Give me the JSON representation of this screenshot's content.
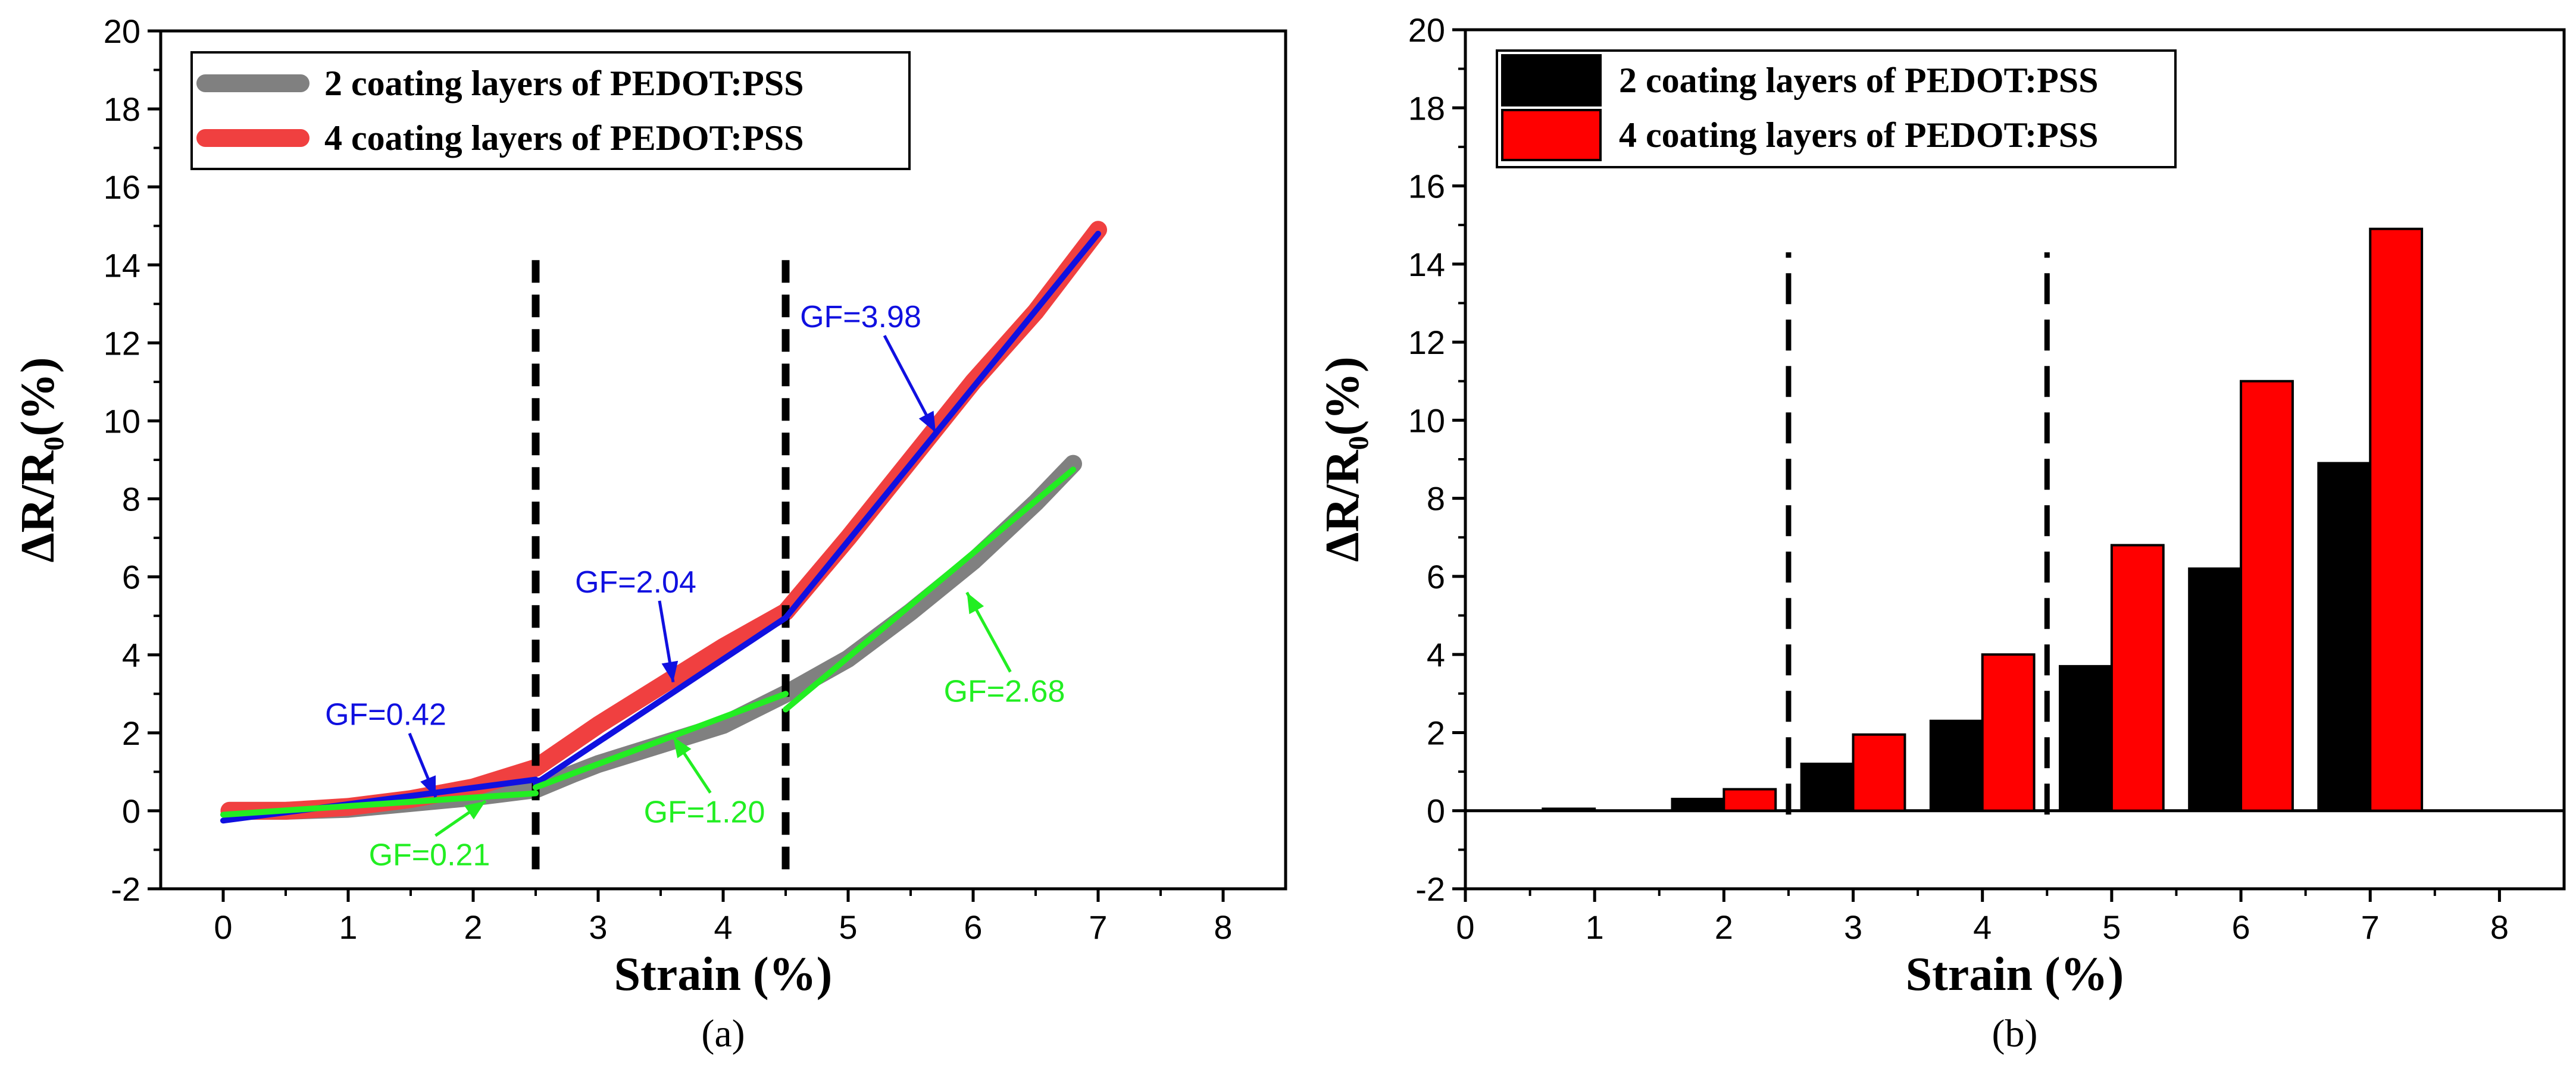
{
  "chart_data": [
    {
      "type": "line",
      "panel_label": "(a)",
      "xlabel": "Strain (%)",
      "ylabel": "ΔR/R₀(%)",
      "xlim": [
        -0.5,
        8.5
      ],
      "ylim": [
        -2,
        20
      ],
      "xticks": [
        "0",
        "1",
        "2",
        "3",
        "4",
        "5",
        "6",
        "7",
        "8"
      ],
      "yticks": [
        "-2",
        "0",
        "2",
        "4",
        "6",
        "8",
        "10",
        "12",
        "14",
        "16",
        "18",
        "20"
      ],
      "legend_position": "top-left",
      "series": [
        {
          "name": "2 coating layers of PEDOT:PSS",
          "color": "#808080",
          "x": [
            0.05,
            0.5,
            1.0,
            1.5,
            2.0,
            2.5,
            2.8,
            3.0,
            3.5,
            4.0,
            4.5,
            5.0,
            5.5,
            6.0,
            6.5,
            6.8
          ],
          "y": [
            0.0,
            0.0,
            0.05,
            0.2,
            0.35,
            0.55,
            0.95,
            1.2,
            1.7,
            2.2,
            3.0,
            3.9,
            5.1,
            6.4,
            7.9,
            8.9
          ]
        },
        {
          "name": "4 coating layers of PEDOT:PSS",
          "color": "#f04040",
          "x": [
            0.05,
            0.5,
            1.0,
            1.5,
            2.0,
            2.5,
            3.0,
            3.5,
            4.0,
            4.5,
            5.0,
            5.5,
            6.0,
            6.5,
            7.0
          ],
          "y": [
            0.0,
            0.0,
            0.1,
            0.3,
            0.6,
            1.1,
            2.2,
            3.2,
            4.2,
            5.1,
            7.0,
            9.0,
            11.0,
            12.8,
            14.9
          ]
        }
      ],
      "fits": [
        {
          "label": "GF=0.42",
          "color": "#1010e0",
          "x": [
            0.0,
            2.5
          ],
          "y": [
            -0.25,
            0.8
          ],
          "label_at": [
            1.3,
            2.2
          ],
          "arrow_to": [
            1.7,
            0.35
          ]
        },
        {
          "label": "GF=2.04",
          "color": "#1010e0",
          "x": [
            2.5,
            4.5
          ],
          "y": [
            0.7,
            4.95
          ],
          "label_at": [
            3.3,
            5.6
          ],
          "arrow_to": [
            3.6,
            3.3
          ]
        },
        {
          "label": "GF=3.98",
          "color": "#1010e0",
          "x": [
            4.5,
            7.0
          ],
          "y": [
            4.95,
            14.8
          ],
          "label_at": [
            5.1,
            12.4
          ],
          "arrow_to": [
            5.7,
            9.7
          ]
        },
        {
          "label": "GF=0.21",
          "color": "#22ee22",
          "x": [
            0.0,
            2.5
          ],
          "y": [
            -0.1,
            0.45
          ],
          "label_at": [
            1.65,
            -1.4
          ],
          "arrow_to": [
            2.1,
            0.25
          ]
        },
        {
          "label": "GF=1.20",
          "color": "#22ee22",
          "x": [
            2.5,
            4.5
          ],
          "y": [
            0.6,
            3.0
          ],
          "label_at": [
            3.85,
            -0.3
          ],
          "arrow_to": [
            3.6,
            1.9
          ]
        },
        {
          "label": "GF=2.68",
          "color": "#22ee22",
          "x": [
            4.5,
            6.8
          ],
          "y": [
            2.6,
            8.75
          ],
          "label_at": [
            6.25,
            2.8
          ],
          "arrow_to": [
            5.95,
            5.6
          ]
        }
      ],
      "dashed_lines_x": [
        2.5,
        4.5
      ],
      "dashed_lines_y": [
        -1.5,
        14.2
      ]
    },
    {
      "type": "bar",
      "panel_label": "(b)",
      "xlabel": "Strain (%)",
      "ylabel": "ΔR/R₀(%)",
      "xlim": [
        0,
        8.5
      ],
      "ylim": [
        -2,
        20
      ],
      "xticks": [
        "0",
        "1",
        "2",
        "3",
        "4",
        "5",
        "6",
        "7",
        "8"
      ],
      "yticks": [
        "-2",
        "0",
        "2",
        "4",
        "6",
        "8",
        "10",
        "12",
        "14",
        "16",
        "18",
        "20"
      ],
      "legend_position": "top-left",
      "categories": [
        1,
        2,
        3,
        4,
        5,
        6,
        7
      ],
      "series": [
        {
          "name": "2 coating layers of PEDOT:PSS",
          "color": "#000000",
          "values": [
            0.05,
            0.3,
            1.2,
            2.3,
            3.7,
            6.2,
            8.9
          ]
        },
        {
          "name": "4 coating layers of PEDOT:PSS",
          "color": "#ff0000",
          "values": [
            0.0,
            0.55,
            1.95,
            4.0,
            6.8,
            11.0,
            14.9
          ]
        }
      ],
      "dashed_lines_x": [
        2.5,
        4.5
      ],
      "dashed_lines_y": [
        -0.1,
        14.3
      ]
    }
  ]
}
